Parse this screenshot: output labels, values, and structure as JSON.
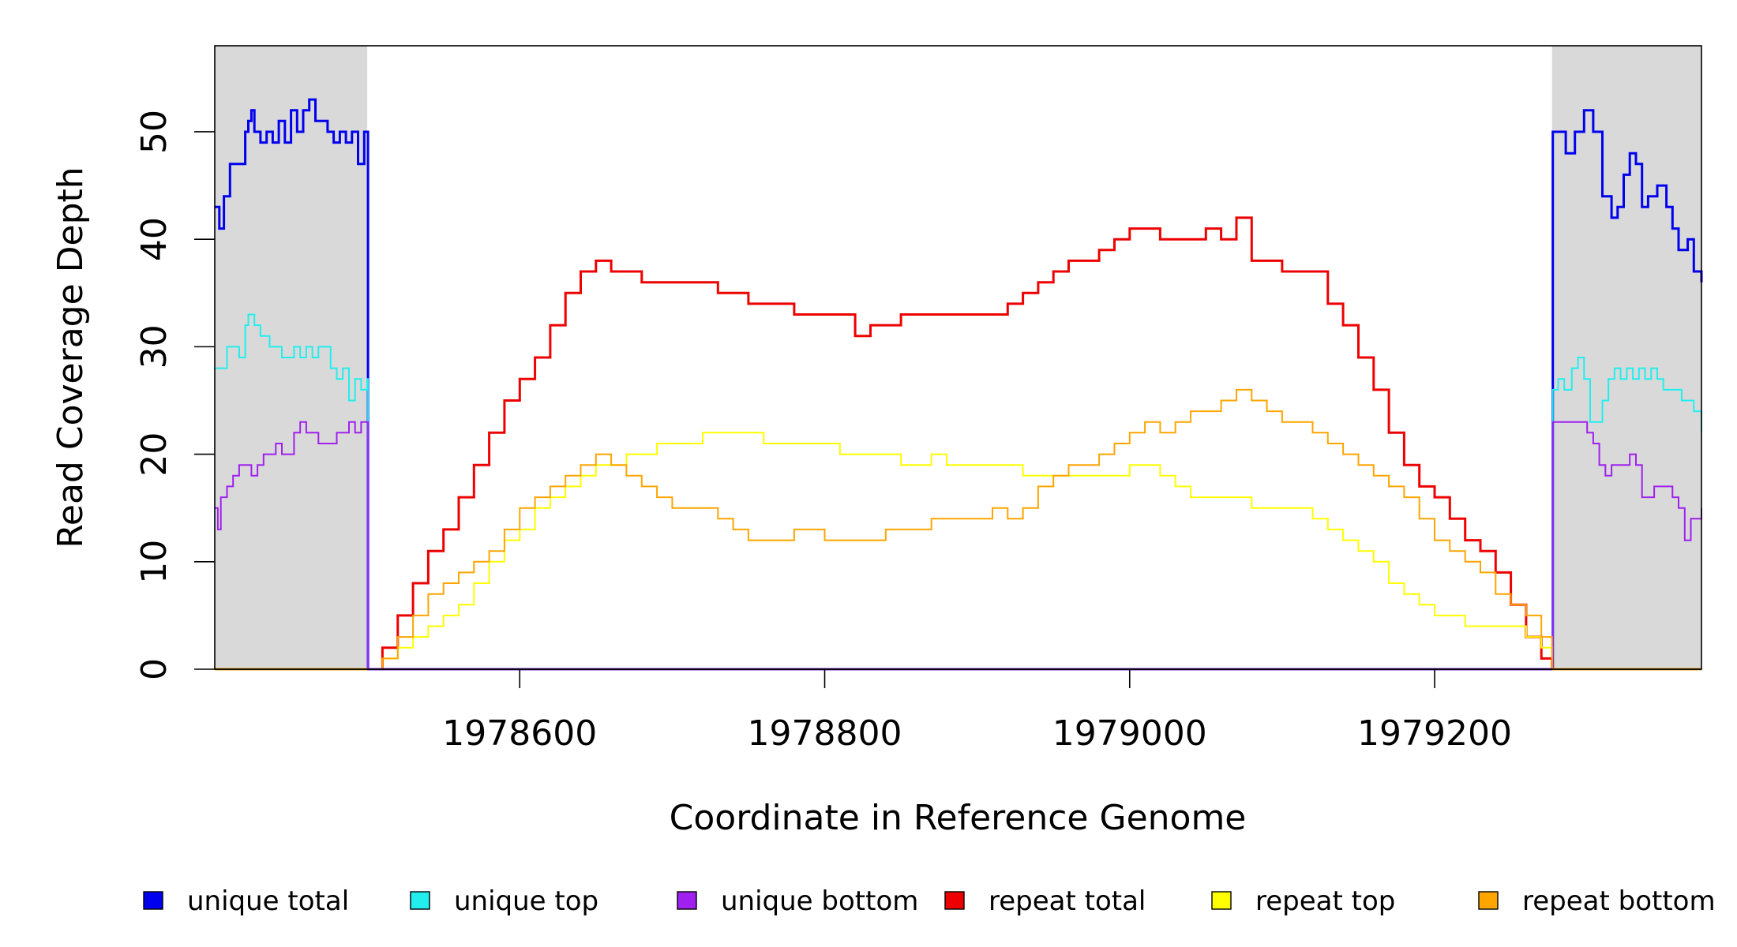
{
  "chart_data": {
    "type": "line",
    "title": "",
    "xlabel": "Coordinate in Reference Genome",
    "ylabel": "Read Coverage Depth",
    "xlim": [
      1978400,
      1979375
    ],
    "ylim": [
      0,
      58
    ],
    "x_ticks": [
      1978600,
      1978800,
      1979000,
      1979200
    ],
    "x_tick_labels": [
      "1978600",
      "1978800",
      "1979000",
      "1979200"
    ],
    "y_ticks": [
      0,
      10,
      20,
      30,
      40,
      50
    ],
    "y_tick_labels": [
      "0",
      "10",
      "20",
      "30",
      "40",
      "50"
    ],
    "grid": false,
    "legend_position": "bottom",
    "shaded_regions": [
      {
        "from": 1978400,
        "to": 1978500,
        "color": "#d9d9d9"
      },
      {
        "from": 1979277,
        "to": 1979375,
        "color": "#d9d9d9"
      }
    ],
    "series": [
      {
        "name": "unique total",
        "color": "#0000ee",
        "x": [
          1978400,
          1978403,
          1978406,
          1978410,
          1978416,
          1978420,
          1978422,
          1978424,
          1978426,
          1978430,
          1978434,
          1978438,
          1978442,
          1978446,
          1978450,
          1978454,
          1978458,
          1978462,
          1978466,
          1978470,
          1978474,
          1978478,
          1978482,
          1978486,
          1978490,
          1978494,
          1978498,
          1978500,
          1978500.5,
          1979277,
          1979277.5,
          1979280,
          1979286,
          1979292,
          1979298,
          1979304,
          1979310,
          1979316,
          1979320,
          1979324,
          1979328,
          1979332,
          1979336,
          1979340,
          1979346,
          1979352,
          1979356,
          1979360,
          1979366,
          1979370,
          1979375
        ],
        "y": [
          43,
          41,
          44,
          47,
          47,
          50,
          51,
          52,
          50,
          49,
          50,
          49,
          51,
          49,
          52,
          50,
          52,
          53,
          51,
          51,
          50,
          49,
          50,
          49,
          50,
          47,
          50,
          50,
          0,
          0,
          50,
          50,
          48,
          50,
          52,
          50,
          44,
          42,
          43,
          46,
          48,
          47,
          43,
          44,
          45,
          43,
          41,
          39,
          40,
          37,
          36
        ]
      },
      {
        "name": "unique top",
        "color": "#22eeee",
        "x": [
          1978400,
          1978404,
          1978408,
          1978412,
          1978416,
          1978420,
          1978422,
          1978426,
          1978430,
          1978436,
          1978440,
          1978444,
          1978448,
          1978452,
          1978456,
          1978460,
          1978464,
          1978468,
          1978472,
          1978476,
          1978480,
          1978484,
          1978488,
          1978492,
          1978496,
          1978500,
          1978500.5,
          1979277,
          1979277.5,
          1979281,
          1979285,
          1979290,
          1979294,
          1979298,
          1979302,
          1979306,
          1979310,
          1979314,
          1979318,
          1979322,
          1979326,
          1979330,
          1979334,
          1979338,
          1979342,
          1979346,
          1979350,
          1979354,
          1979358,
          1979362,
          1979366,
          1979370,
          1979375
        ],
        "y": [
          28,
          28,
          30,
          30,
          29,
          32,
          33,
          32,
          31,
          30,
          30,
          29,
          29,
          30,
          29,
          30,
          29,
          30,
          30,
          28,
          27,
          28,
          25,
          27,
          26,
          27,
          0,
          0,
          26,
          27,
          26,
          28,
          29,
          27,
          23,
          23,
          25,
          27,
          28,
          27,
          28,
          27,
          28,
          27,
          28,
          27,
          26,
          26,
          26,
          25,
          25,
          24,
          22
        ]
      },
      {
        "name": "unique bottom",
        "color": "#a020f0",
        "x": [
          1978400,
          1978402,
          1978404,
          1978408,
          1978412,
          1978416,
          1978420,
          1978424,
          1978428,
          1978432,
          1978436,
          1978440,
          1978444,
          1978448,
          1978452,
          1978456,
          1978460,
          1978464,
          1978468,
          1978472,
          1978476,
          1978480,
          1978484,
          1978488,
          1978492,
          1978496,
          1978500,
          1978500.5,
          1979277,
          1979277.5,
          1979282,
          1979288,
          1979294,
          1979300,
          1979304,
          1979308,
          1979312,
          1979316,
          1979320,
          1979324,
          1979328,
          1979332,
          1979336,
          1979340,
          1979344,
          1979348,
          1979352,
          1979356,
          1979360,
          1979364,
          1979368,
          1979375
        ],
        "y": [
          15,
          13,
          16,
          17,
          18,
          19,
          19,
          18,
          19,
          20,
          20,
          21,
          20,
          20,
          22,
          23,
          22,
          22,
          21,
          21,
          21,
          22,
          22,
          23,
          22,
          23,
          23,
          0,
          0,
          23,
          23,
          23,
          23,
          22,
          21,
          19,
          18,
          19,
          19,
          19,
          20,
          19,
          16,
          16,
          17,
          17,
          17,
          16,
          15,
          12,
          14,
          15
        ]
      },
      {
        "name": "repeat total",
        "color": "#ee0000",
        "x": [
          1978500,
          1978510,
          1978520,
          1978530,
          1978540,
          1978550,
          1978560,
          1978570,
          1978580,
          1978590,
          1978600,
          1978610,
          1978620,
          1978630,
          1978640,
          1978650,
          1978660,
          1978670,
          1978680,
          1978690,
          1978700,
          1978710,
          1978720,
          1978730,
          1978740,
          1978750,
          1978760,
          1978770,
          1978780,
          1978790,
          1978800,
          1978810,
          1978820,
          1978830,
          1978840,
          1978850,
          1978860,
          1978870,
          1978880,
          1978890,
          1978900,
          1978910,
          1978920,
          1978930,
          1978940,
          1978950,
          1978960,
          1978970,
          1978980,
          1978990,
          1979000,
          1979010,
          1979020,
          1979030,
          1979040,
          1979050,
          1979060,
          1979070,
          1979080,
          1979090,
          1979100,
          1979110,
          1979120,
          1979130,
          1979140,
          1979150,
          1979160,
          1979170,
          1979180,
          1979190,
          1979200,
          1979210,
          1979220,
          1979230,
          1979240,
          1979250,
          1979260,
          1979270,
          1979277
        ],
        "y": [
          0,
          2,
          5,
          8,
          11,
          13,
          16,
          19,
          22,
          25,
          27,
          29,
          32,
          35,
          37,
          38,
          37,
          37,
          36,
          36,
          36,
          36,
          36,
          35,
          35,
          34,
          34,
          34,
          33,
          33,
          33,
          33,
          31,
          32,
          32,
          33,
          33,
          33,
          33,
          33,
          33,
          33,
          34,
          35,
          36,
          37,
          38,
          38,
          39,
          40,
          41,
          41,
          40,
          40,
          40,
          41,
          40,
          42,
          38,
          38,
          37,
          37,
          37,
          34,
          32,
          29,
          26,
          22,
          19,
          17,
          16,
          14,
          12,
          11,
          9,
          6,
          3,
          1,
          0
        ]
      },
      {
        "name": "repeat top",
        "color": "#ffff00",
        "x": [
          1978500,
          1978510,
          1978520,
          1978530,
          1978540,
          1978550,
          1978560,
          1978570,
          1978580,
          1978590,
          1978600,
          1978610,
          1978620,
          1978630,
          1978640,
          1978650,
          1978660,
          1978670,
          1978680,
          1978690,
          1978700,
          1978710,
          1978720,
          1978730,
          1978740,
          1978750,
          1978760,
          1978770,
          1978780,
          1978790,
          1978800,
          1978810,
          1978820,
          1978830,
          1978840,
          1978850,
          1978860,
          1978870,
          1978880,
          1978890,
          1978900,
          1978910,
          1978920,
          1978930,
          1978940,
          1978950,
          1978960,
          1978970,
          1978980,
          1978990,
          1979000,
          1979010,
          1979020,
          1979030,
          1979040,
          1979050,
          1979060,
          1979070,
          1979080,
          1979090,
          1979100,
          1979110,
          1979120,
          1979130,
          1979140,
          1979150,
          1979160,
          1979170,
          1979180,
          1979190,
          1979200,
          1979210,
          1979220,
          1979230,
          1979240,
          1979250,
          1979260,
          1979270,
          1979277
        ],
        "y": [
          0,
          1,
          2,
          3,
          4,
          5,
          6,
          8,
          10,
          12,
          13,
          15,
          16,
          17,
          18,
          19,
          19,
          20,
          20,
          21,
          21,
          21,
          22,
          22,
          22,
          22,
          21,
          21,
          21,
          21,
          21,
          20,
          20,
          20,
          20,
          19,
          19,
          20,
          19,
          19,
          19,
          19,
          19,
          18,
          18,
          18,
          18,
          18,
          18,
          18,
          19,
          19,
          18,
          17,
          16,
          16,
          16,
          16,
          15,
          15,
          15,
          15,
          14,
          13,
          12,
          11,
          10,
          8,
          7,
          6,
          5,
          5,
          4,
          4,
          4,
          4,
          3,
          2,
          0
        ]
      },
      {
        "name": "repeat bottom",
        "color": "#ffa500",
        "x": [
          1978500,
          1978510,
          1978520,
          1978530,
          1978540,
          1978550,
          1978560,
          1978570,
          1978580,
          1978590,
          1978600,
          1978610,
          1978620,
          1978630,
          1978640,
          1978650,
          1978660,
          1978670,
          1978680,
          1978690,
          1978700,
          1978710,
          1978720,
          1978730,
          1978740,
          1978750,
          1978760,
          1978770,
          1978780,
          1978790,
          1978800,
          1978810,
          1978820,
          1978830,
          1978840,
          1978850,
          1978860,
          1978870,
          1978880,
          1978890,
          1978900,
          1978910,
          1978920,
          1978930,
          1978940,
          1978950,
          1978960,
          1978970,
          1978980,
          1978990,
          1979000,
          1979010,
          1979020,
          1979030,
          1979040,
          1979050,
          1979060,
          1979070,
          1979080,
          1979090,
          1979100,
          1979110,
          1979120,
          1979130,
          1979140,
          1979150,
          1979160,
          1979170,
          1979180,
          1979190,
          1979200,
          1979210,
          1979220,
          1979230,
          1979240,
          1979250,
          1979260,
          1979270,
          1979277
        ],
        "y": [
          0,
          1,
          3,
          5,
          7,
          8,
          9,
          10,
          11,
          13,
          15,
          16,
          17,
          18,
          19,
          20,
          19,
          18,
          17,
          16,
          15,
          15,
          15,
          14,
          13,
          12,
          12,
          12,
          13,
          13,
          12,
          12,
          12,
          12,
          13,
          13,
          13,
          14,
          14,
          14,
          14,
          15,
          14,
          15,
          17,
          18,
          19,
          19,
          20,
          21,
          22,
          23,
          22,
          23,
          24,
          24,
          25,
          26,
          25,
          24,
          23,
          23,
          22,
          21,
          20,
          19,
          18,
          17,
          16,
          14,
          12,
          11,
          10,
          9,
          7,
          6,
          5,
          3,
          0
        ]
      }
    ]
  }
}
